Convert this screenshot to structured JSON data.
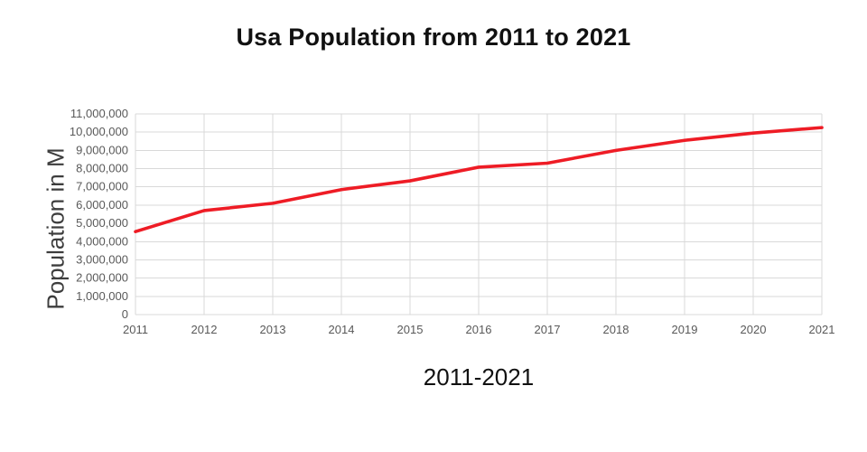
{
  "chart_data": {
    "type": "line",
    "title": "Usa Population from 2011 to 2021",
    "xlabel": "2011-2021",
    "ylabel": "Population in M",
    "categories": [
      "2011",
      "2012",
      "2013",
      "2014",
      "2015",
      "2016",
      "2017",
      "2018",
      "2019",
      "2020",
      "2021"
    ],
    "values": [
      4550000,
      5700000,
      6100000,
      6850000,
      7330000,
      8080000,
      8300000,
      9000000,
      9550000,
      9950000,
      10250000
    ],
    "ylim": [
      0,
      11000000
    ],
    "ytick_step": 1000000,
    "grid": true,
    "legend": "none",
    "line_color": "#ee1c25",
    "grid_color": "#d9d9d9",
    "tick_label_color": "#595959"
  }
}
